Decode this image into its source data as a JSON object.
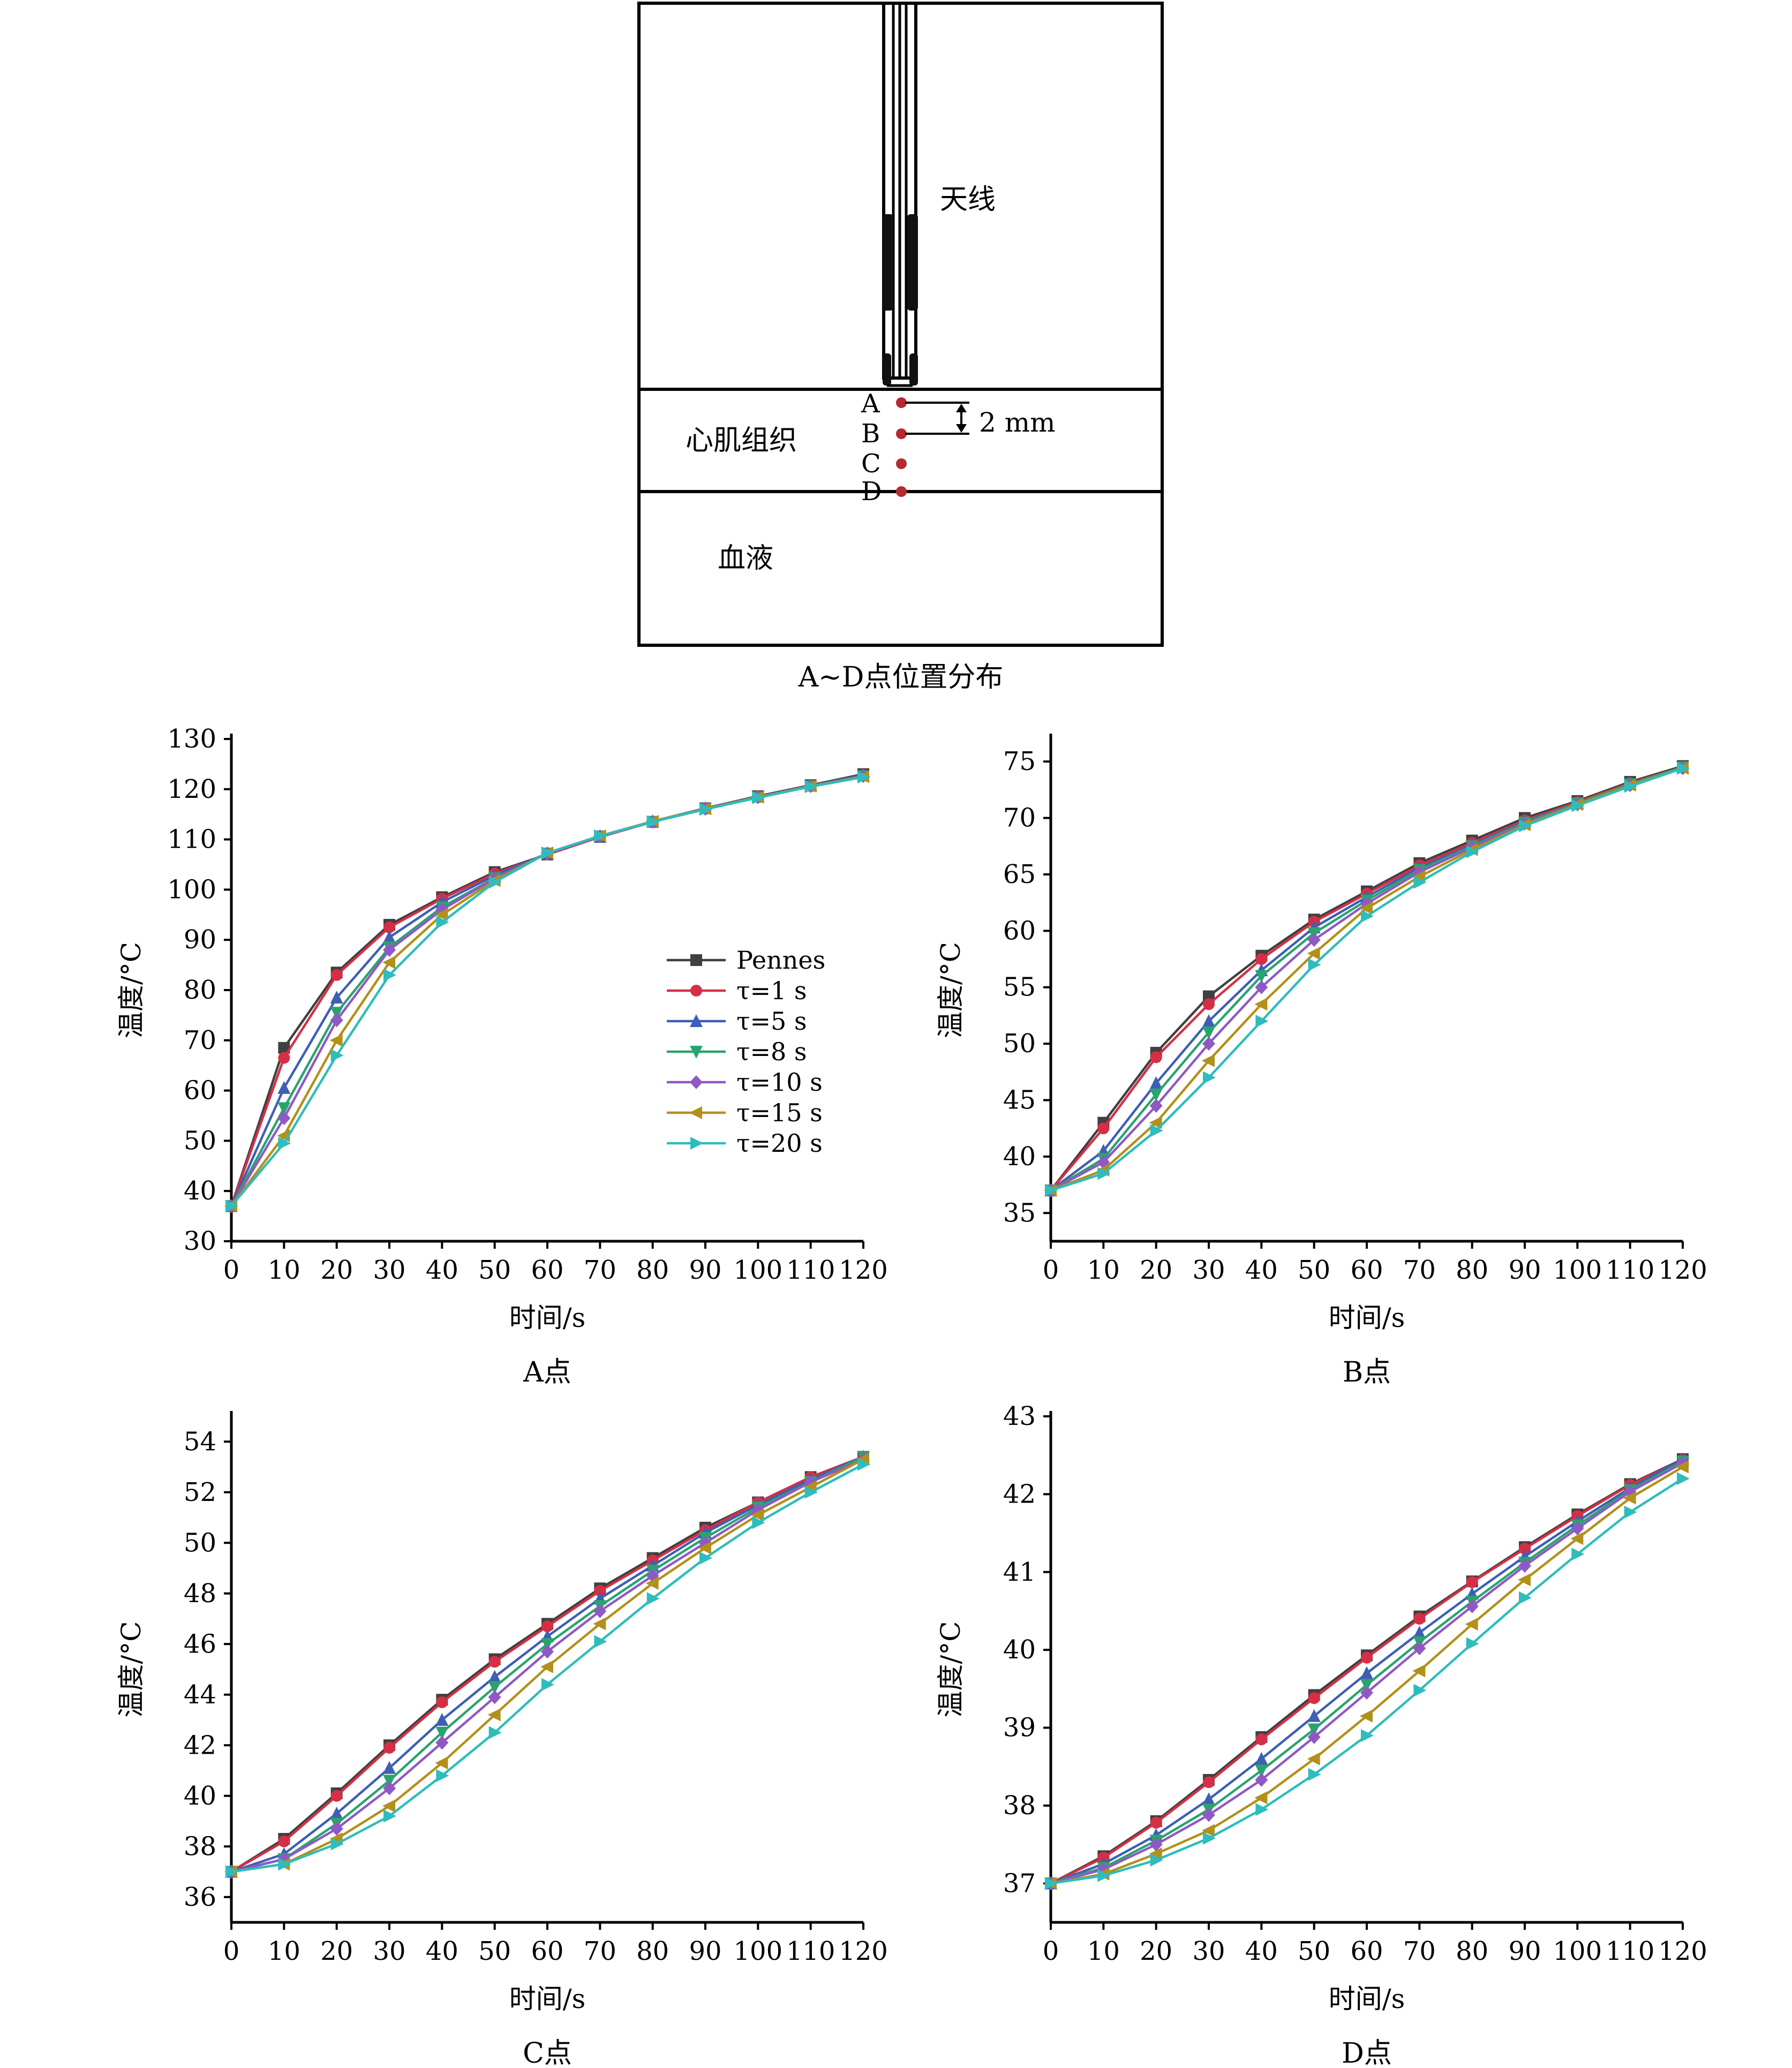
{
  "diagram": {
    "antenna_label": "天线",
    "tissue_label": "心肌组织",
    "blood_label": "血液",
    "points": [
      "A",
      "B",
      "C",
      "D"
    ],
    "spacing_label": "2 mm",
    "caption": "A~D点位置分布"
  },
  "series_style": [
    {
      "name": "Pennes",
      "color": "#404040",
      "marker": "square"
    },
    {
      "name": "τ=1 s",
      "color": "#d62f45",
      "marker": "circle"
    },
    {
      "name": "τ=5 s",
      "color": "#3d5fb5",
      "marker": "triangle-up"
    },
    {
      "name": "τ=8 s",
      "color": "#2aa36e",
      "marker": "triangle-down"
    },
    {
      "name": "τ=10 s",
      "color": "#8f59c4",
      "marker": "diamond"
    },
    {
      "name": "τ=15 s",
      "color": "#b2901a",
      "marker": "triangle-left"
    },
    {
      "name": "τ=20 s",
      "color": "#2fbcbc",
      "marker": "triangle-right"
    }
  ],
  "chart_data": [
    {
      "type": "line",
      "caption": "A点",
      "xlabel": "时间/s",
      "ylabel": "温度/°C",
      "x": [
        0,
        10,
        20,
        30,
        40,
        50,
        60,
        70,
        80,
        90,
        100,
        110,
        120
      ],
      "xlim": [
        0,
        120
      ],
      "ylim": [
        30,
        130
      ],
      "yticks": [
        30,
        40,
        50,
        60,
        70,
        80,
        90,
        100,
        110,
        120,
        130
      ],
      "legend": "inside",
      "series": [
        {
          "name": "Pennes",
          "values": [
            37,
            68.5,
            83.5,
            93,
            98.5,
            103.5,
            107,
            110.5,
            113.5,
            116.2,
            118.6,
            120.8,
            123
          ]
        },
        {
          "name": "τ=1 s",
          "values": [
            37,
            66.5,
            83,
            92.5,
            98.2,
            103.2,
            107,
            110.5,
            113.5,
            116.2,
            118.5,
            120.7,
            122.8
          ]
        },
        {
          "name": "τ=5 s",
          "values": [
            37,
            60.5,
            78.5,
            90.5,
            97.5,
            102.8,
            107.2,
            110.6,
            113.6,
            116.2,
            118.5,
            120.7,
            122.8
          ]
        },
        {
          "name": "τ=8 s",
          "values": [
            37,
            56.5,
            75.5,
            88.5,
            96.5,
            102.3,
            107.2,
            110.6,
            113.5,
            116.1,
            118.4,
            120.6,
            122.6
          ]
        },
        {
          "name": "τ=10 s",
          "values": [
            37,
            54.5,
            74,
            88,
            96,
            102.2,
            107.2,
            110.6,
            113.5,
            116.1,
            118.4,
            120.6,
            122.6
          ]
        },
        {
          "name": "τ=15 s",
          "values": [
            37,
            51,
            70,
            85.5,
            95,
            101.8,
            107.3,
            110.7,
            113.6,
            116.1,
            118.4,
            120.6,
            122.5
          ]
        },
        {
          "name": "τ=20 s",
          "values": [
            37,
            49.5,
            67,
            83,
            93.5,
            101.5,
            107.3,
            110.7,
            113.5,
            116,
            118.3,
            120.5,
            122.4
          ]
        }
      ]
    },
    {
      "type": "line",
      "caption": "B点",
      "xlabel": "时间/s",
      "ylabel": "温度/°C",
      "x": [
        0,
        10,
        20,
        30,
        40,
        50,
        60,
        70,
        80,
        90,
        100,
        110,
        120
      ],
      "xlim": [
        0,
        120
      ],
      "ylim": [
        32.5,
        77
      ],
      "yticks": [
        35,
        40,
        45,
        50,
        55,
        60,
        65,
        70,
        75
      ],
      "series": [
        {
          "name": "Pennes",
          "values": [
            37,
            43,
            49.2,
            54.2,
            57.8,
            61,
            63.5,
            66,
            68,
            70,
            71.5,
            73.2,
            74.6
          ]
        },
        {
          "name": "τ=1 s",
          "values": [
            37,
            42.5,
            48.8,
            53.5,
            57.5,
            60.8,
            63.3,
            65.8,
            67.8,
            69.8,
            71.4,
            73.1,
            74.5
          ]
        },
        {
          "name": "τ=5 s",
          "values": [
            37,
            40.5,
            46.5,
            52,
            56.5,
            60.3,
            63,
            65.6,
            67.6,
            69.7,
            71.3,
            73,
            74.5
          ]
        },
        {
          "name": "τ=8 s",
          "values": [
            37,
            39.8,
            45.5,
            51,
            56,
            59.8,
            62.7,
            65.4,
            67.5,
            69.6,
            71.3,
            73,
            74.5
          ]
        },
        {
          "name": "τ=10 s",
          "values": [
            37,
            39.5,
            44.5,
            50,
            55,
            59.2,
            62.4,
            65.2,
            67.4,
            69.5,
            71.2,
            72.9,
            74.4
          ]
        },
        {
          "name": "τ=15 s",
          "values": [
            37,
            38.8,
            43,
            48.5,
            53.5,
            58,
            62,
            64.8,
            67.2,
            69.4,
            71.2,
            72.9,
            74.4
          ]
        },
        {
          "name": "τ=20 s",
          "values": [
            37,
            38.5,
            42.3,
            47,
            52,
            57,
            61.3,
            64.3,
            67,
            69.3,
            71.1,
            72.8,
            74.4
          ]
        }
      ]
    },
    {
      "type": "line",
      "caption": "C点",
      "xlabel": "时间/s",
      "ylabel": "温度/°C",
      "x": [
        0,
        10,
        20,
        30,
        40,
        50,
        60,
        70,
        80,
        90,
        100,
        110,
        120
      ],
      "xlim": [
        0,
        120
      ],
      "ylim": [
        35,
        55
      ],
      "yticks": [
        36,
        38,
        40,
        42,
        44,
        46,
        48,
        50,
        52,
        54
      ],
      "series": [
        {
          "name": "Pennes",
          "values": [
            37,
            38.3,
            40.1,
            42,
            43.8,
            45.4,
            46.8,
            48.2,
            49.4,
            50.6,
            51.6,
            52.6,
            53.4
          ]
        },
        {
          "name": "τ=1 s",
          "values": [
            37,
            38.2,
            40,
            41.9,
            43.7,
            45.3,
            46.7,
            48.1,
            49.3,
            50.5,
            51.6,
            52.6,
            53.4
          ]
        },
        {
          "name": "τ=5 s",
          "values": [
            37,
            37.7,
            39.3,
            41.1,
            43,
            44.7,
            46.3,
            47.8,
            49.1,
            50.4,
            51.5,
            52.5,
            53.4
          ]
        },
        {
          "name": "τ=8 s",
          "values": [
            37,
            37.5,
            38.9,
            40.6,
            42.5,
            44.3,
            46,
            47.5,
            48.9,
            50.2,
            51.4,
            52.4,
            53.4
          ]
        },
        {
          "name": "τ=10 s",
          "values": [
            37,
            37.5,
            38.7,
            40.3,
            42.1,
            43.9,
            45.7,
            47.3,
            48.7,
            50,
            51.3,
            52.4,
            53.3
          ]
        },
        {
          "name": "τ=15 s",
          "values": [
            37,
            37.3,
            38.3,
            39.6,
            41.3,
            43.2,
            45.1,
            46.8,
            48.4,
            49.8,
            51.1,
            52.2,
            53.3
          ]
        },
        {
          "name": "τ=20 s",
          "values": [
            37,
            37.3,
            38.1,
            39.2,
            40.8,
            42.5,
            44.4,
            46.1,
            47.8,
            49.4,
            50.8,
            52,
            53.1
          ]
        }
      ]
    },
    {
      "type": "line",
      "caption": "D点",
      "xlabel": "时间/s",
      "ylabel": "温度/°C",
      "x": [
        0,
        10,
        20,
        30,
        40,
        50,
        60,
        70,
        80,
        90,
        100,
        110,
        120
      ],
      "xlim": [
        0,
        120
      ],
      "ylim": [
        36.5,
        43
      ],
      "yticks": [
        37,
        38,
        39,
        40,
        41,
        42,
        43
      ],
      "series": [
        {
          "name": "Pennes",
          "values": [
            37,
            37.35,
            37.8,
            38.33,
            38.88,
            39.42,
            39.93,
            40.43,
            40.88,
            41.32,
            41.74,
            42.13,
            42.45
          ]
        },
        {
          "name": "τ=1 s",
          "values": [
            37,
            37.33,
            37.78,
            38.3,
            38.85,
            39.38,
            39.9,
            40.4,
            40.87,
            41.3,
            41.72,
            42.12,
            42.44
          ]
        },
        {
          "name": "τ=5 s",
          "values": [
            37,
            37.25,
            37.62,
            38.08,
            38.6,
            39.15,
            39.7,
            40.22,
            40.72,
            41.2,
            41.65,
            42.08,
            42.45
          ]
        },
        {
          "name": "τ=8 s",
          "values": [
            37,
            37.2,
            37.55,
            37.95,
            38.45,
            38.98,
            39.55,
            40.1,
            40.62,
            41.12,
            41.6,
            42.05,
            42.42
          ]
        },
        {
          "name": "τ=10 s",
          "values": [
            37,
            37.18,
            37.5,
            37.88,
            38.33,
            38.88,
            39.45,
            40.02,
            40.56,
            41.08,
            41.56,
            42.03,
            42.4
          ]
        },
        {
          "name": "τ=15 s",
          "values": [
            37,
            37.12,
            37.38,
            37.68,
            38.1,
            38.6,
            39.15,
            39.73,
            40.33,
            40.9,
            41.43,
            41.95,
            42.35
          ]
        },
        {
          "name": "τ=20 s",
          "values": [
            37,
            37.1,
            37.3,
            37.58,
            37.95,
            38.4,
            38.9,
            39.48,
            40.08,
            40.67,
            41.23,
            41.77,
            42.2
          ]
        }
      ]
    }
  ]
}
